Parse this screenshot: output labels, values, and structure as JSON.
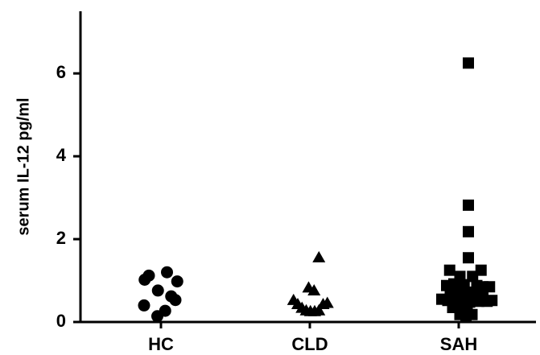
{
  "chart_data": {
    "type": "scatter",
    "title": "",
    "xlabel": "",
    "ylabel": "serum IL-12 pg/ml",
    "ylim": [
      0,
      7.5
    ],
    "yticks": [
      0,
      2,
      4,
      6
    ],
    "categories": [
      "HC",
      "CLD",
      "SAH"
    ],
    "grid": false,
    "legend": "none",
    "series": [
      {
        "category": "HC",
        "marker": "circle",
        "points": [
          {
            "x": -0.27,
            "y": 1.02
          },
          {
            "x": -0.2,
            "y": 1.12
          },
          {
            "x": 0.1,
            "y": 1.2
          },
          {
            "x": -0.05,
            "y": 0.76
          },
          {
            "x": 0.27,
            "y": 0.98
          },
          {
            "x": 0.17,
            "y": 0.62
          },
          {
            "x": 0.24,
            "y": 0.53
          },
          {
            "x": -0.28,
            "y": 0.4
          },
          {
            "x": 0.07,
            "y": 0.27
          },
          {
            "x": -0.06,
            "y": 0.14
          }
        ]
      },
      {
        "category": "CLD",
        "marker": "triangle",
        "points": [
          {
            "x": 0.15,
            "y": 1.55
          },
          {
            "x": -0.02,
            "y": 0.82
          },
          {
            "x": 0.07,
            "y": 0.75
          },
          {
            "x": -0.27,
            "y": 0.52
          },
          {
            "x": -0.2,
            "y": 0.42
          },
          {
            "x": -0.13,
            "y": 0.33
          },
          {
            "x": -0.06,
            "y": 0.27
          },
          {
            "x": 0.01,
            "y": 0.25
          },
          {
            "x": 0.08,
            "y": 0.25
          },
          {
            "x": 0.15,
            "y": 0.27
          },
          {
            "x": 0.22,
            "y": 0.42
          },
          {
            "x": 0.29,
            "y": 0.45
          }
        ]
      },
      {
        "category": "SAH",
        "marker": "square",
        "points": [
          {
            "x": 0.16,
            "y": 6.25
          },
          {
            "x": 0.16,
            "y": 2.82
          },
          {
            "x": 0.16,
            "y": 2.18
          },
          {
            "x": 0.16,
            "y": 1.55
          },
          {
            "x": -0.15,
            "y": 1.25
          },
          {
            "x": 0.37,
            "y": 1.25
          },
          {
            "x": 0.02,
            "y": 1.1
          },
          {
            "x": 0.23,
            "y": 1.1
          },
          {
            "x": -0.2,
            "y": 0.88
          },
          {
            "x": -0.08,
            "y": 0.92
          },
          {
            "x": 0.09,
            "y": 0.9
          },
          {
            "x": 0.3,
            "y": 0.88
          },
          {
            "x": 0.4,
            "y": 0.85
          },
          {
            "x": 0.51,
            "y": 0.85
          },
          {
            "x": -0.14,
            "y": 0.72
          },
          {
            "x": -0.02,
            "y": 0.72
          },
          {
            "x": 0.12,
            "y": 0.7
          },
          {
            "x": 0.26,
            "y": 0.72
          },
          {
            "x": 0.4,
            "y": 0.65
          },
          {
            "x": -0.28,
            "y": 0.55
          },
          {
            "x": -0.18,
            "y": 0.52
          },
          {
            "x": -0.06,
            "y": 0.5
          },
          {
            "x": 0.05,
            "y": 0.52
          },
          {
            "x": 0.18,
            "y": 0.48
          },
          {
            "x": 0.33,
            "y": 0.5
          },
          {
            "x": 0.47,
            "y": 0.5
          },
          {
            "x": 0.55,
            "y": 0.52
          },
          {
            "x": -0.1,
            "y": 0.35
          },
          {
            "x": 0.02,
            "y": 0.38
          },
          {
            "x": 0.14,
            "y": 0.35
          },
          {
            "x": 0.02,
            "y": 0.18
          },
          {
            "x": 0.12,
            "y": 0.15
          },
          {
            "x": 0.22,
            "y": 0.18
          }
        ]
      }
    ]
  }
}
